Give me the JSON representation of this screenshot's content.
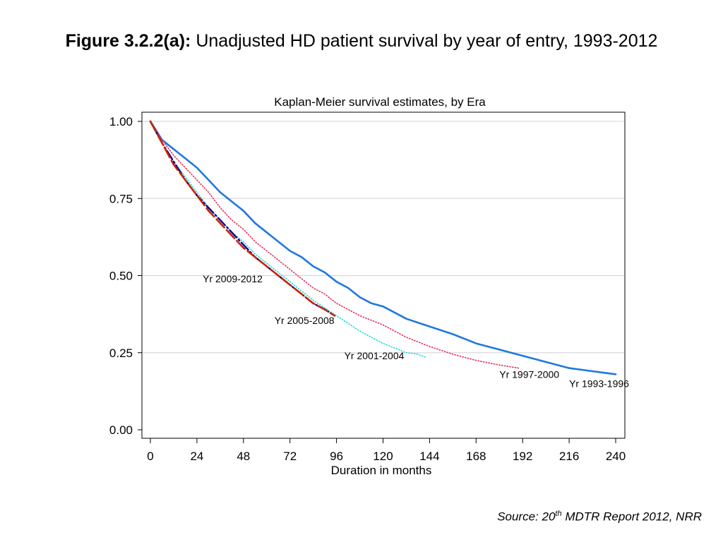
{
  "figure": {
    "label": "Figure 3.2.2(a):",
    "text": "Unadjusted HD patient survival by year of entry, 1993-2012"
  },
  "source": {
    "prefix": "Source: 20",
    "sup": "th",
    "suffix": " MDTR Report 2012, NRR"
  },
  "chart_data": {
    "type": "line",
    "title": "Kaplan-Meier survival estimates, by Era",
    "xlabel": "Duration in months",
    "ylabel": "",
    "xlim": [
      0,
      240
    ],
    "ylim": [
      0,
      1
    ],
    "xticks": [
      0,
      24,
      48,
      72,
      96,
      120,
      144,
      168,
      192,
      216,
      240
    ],
    "yticks": [
      0,
      0.25,
      0.5,
      0.75,
      1
    ],
    "ytick_labels": [
      "0.00",
      "0.25",
      "0.50",
      "0.75",
      "1.00"
    ],
    "grid": true,
    "legend": "none",
    "series": [
      {
        "name": "Yr 1993-1996",
        "color": "#1f78e0",
        "style": "solid",
        "label_anchor": [
          216,
          0.15
        ],
        "x": [
          0,
          6,
          12,
          18,
          24,
          30,
          36,
          42,
          48,
          54,
          60,
          66,
          72,
          78,
          84,
          90,
          96,
          102,
          108,
          114,
          120,
          132,
          144,
          156,
          168,
          180,
          192,
          204,
          216,
          228,
          234,
          240
        ],
        "y": [
          1.0,
          0.94,
          0.91,
          0.88,
          0.85,
          0.81,
          0.77,
          0.74,
          0.71,
          0.67,
          0.64,
          0.61,
          0.58,
          0.56,
          0.53,
          0.51,
          0.48,
          0.46,
          0.43,
          0.41,
          0.4,
          0.36,
          0.335,
          0.31,
          0.28,
          0.26,
          0.24,
          0.22,
          0.2,
          0.19,
          0.185,
          0.18
        ]
      },
      {
        "name": "Yr 1997-2000",
        "color": "#e0305a",
        "style": "dotted",
        "label_anchor": [
          180,
          0.18
        ],
        "x": [
          0,
          6,
          12,
          18,
          24,
          30,
          36,
          42,
          48,
          54,
          60,
          66,
          72,
          78,
          84,
          90,
          96,
          108,
          120,
          132,
          144,
          156,
          168,
          180,
          190
        ],
        "y": [
          1.0,
          0.94,
          0.89,
          0.85,
          0.81,
          0.77,
          0.72,
          0.68,
          0.65,
          0.61,
          0.58,
          0.55,
          0.52,
          0.49,
          0.46,
          0.44,
          0.41,
          0.37,
          0.34,
          0.3,
          0.27,
          0.245,
          0.225,
          0.21,
          0.2
        ]
      },
      {
        "name": "Yr 2001-2004",
        "color": "#27d8e0",
        "style": "dotted",
        "label_anchor": [
          100,
          0.24
        ],
        "x": [
          0,
          6,
          12,
          18,
          24,
          30,
          36,
          42,
          48,
          54,
          60,
          66,
          72,
          78,
          84,
          90,
          96,
          102,
          108,
          114,
          120,
          126,
          132,
          138,
          142
        ],
        "y": [
          1.0,
          0.93,
          0.87,
          0.82,
          0.77,
          0.72,
          0.68,
          0.64,
          0.61,
          0.57,
          0.54,
          0.51,
          0.48,
          0.45,
          0.42,
          0.395,
          0.37,
          0.345,
          0.32,
          0.3,
          0.28,
          0.265,
          0.25,
          0.245,
          0.235
        ]
      },
      {
        "name": "Yr 2005-2008",
        "color": "#00008b",
        "style": "dashdot",
        "label_anchor": [
          64,
          0.355
        ],
        "x": [
          0,
          6,
          12,
          18,
          24,
          30,
          36,
          42,
          48,
          54,
          60,
          66,
          72,
          78,
          84,
          90,
          95
        ],
        "y": [
          1.0,
          0.93,
          0.87,
          0.81,
          0.76,
          0.72,
          0.68,
          0.64,
          0.6,
          0.56,
          0.53,
          0.5,
          0.47,
          0.44,
          0.41,
          0.39,
          0.37
        ]
      },
      {
        "name": "Yr 2009-2012",
        "color": "#cc2200",
        "style": "longdash",
        "label_anchor": [
          27,
          0.49
        ],
        "x": [
          0,
          6,
          12,
          18,
          24,
          30,
          36,
          42,
          48,
          54,
          60,
          66,
          72,
          78,
          84,
          90,
          95
        ],
        "y": [
          1.0,
          0.93,
          0.86,
          0.81,
          0.76,
          0.71,
          0.67,
          0.63,
          0.59,
          0.56,
          0.53,
          0.5,
          0.47,
          0.44,
          0.41,
          0.39,
          0.37
        ]
      }
    ]
  }
}
